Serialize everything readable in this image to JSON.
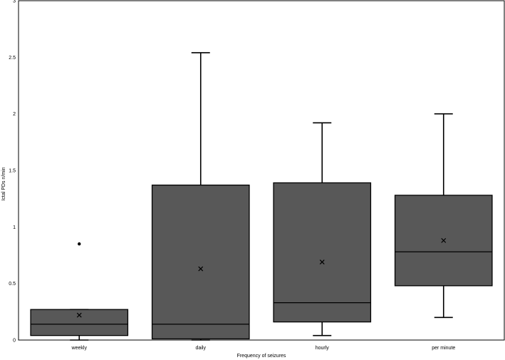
{
  "chart_data": {
    "type": "box",
    "xlabel": "Frequency of seizures",
    "ylabel": "Ictal PDs n/min",
    "ylim": [
      0,
      3
    ],
    "yticks": [
      "0",
      "0.5",
      "1",
      "1.5",
      "2",
      "2.5",
      "3"
    ],
    "ytick_values": [
      0,
      0.5,
      1,
      1.5,
      2,
      2.5,
      3
    ],
    "categories": [
      "weekly",
      "daily",
      "hourly",
      "per minute"
    ],
    "grid": false,
    "box_color": "#585858",
    "boxes": [
      {
        "category": "weekly",
        "min": 0.0,
        "q1": 0.04,
        "median": 0.14,
        "q3": 0.27,
        "max": 0.27,
        "mean": 0.22,
        "outliers": [
          0.85
        ]
      },
      {
        "category": "daily",
        "min": 0.0,
        "q1": 0.01,
        "median": 0.14,
        "q3": 1.37,
        "max": 2.54,
        "mean": 0.63,
        "outliers": []
      },
      {
        "category": "hourly",
        "min": 0.04,
        "q1": 0.16,
        "median": 0.33,
        "q3": 1.39,
        "max": 1.92,
        "mean": 0.69,
        "outliers": []
      },
      {
        "category": "per minute",
        "min": 0.2,
        "q1": 0.48,
        "median": 0.78,
        "q3": 1.28,
        "max": 2.0,
        "mean": 0.88,
        "outliers": []
      }
    ]
  }
}
